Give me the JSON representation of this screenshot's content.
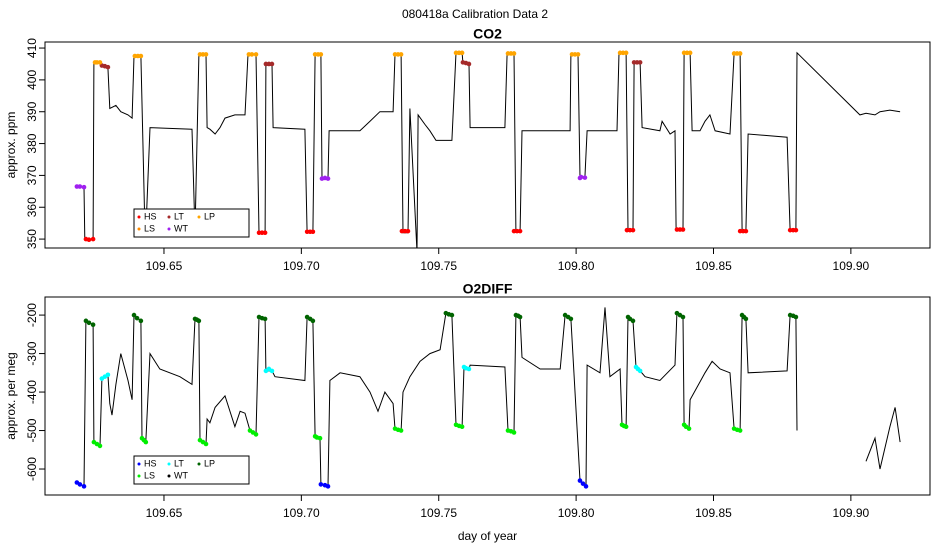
{
  "title": "080418a   Calibration Data 2",
  "chart_data": [
    {
      "type": "line",
      "title": "CO2",
      "y_label": "approx. ppm",
      "xlim": [
        109.6067,
        109.9288
      ],
      "xticks": [
        109.65,
        {
          "value": 109.7,
          "label": "109.70"
        },
        109.75,
        {
          "value": 109.8,
          "label": "109.80"
        },
        109.85,
        {
          "value": 109.9,
          "label": "109.90"
        }
      ],
      "ylim": [
        347.2,
        411.9
      ],
      "yticks": [
        350,
        360,
        370,
        380,
        390,
        400,
        410
      ],
      "legend": "bottomleft",
      "line": {
        "color": "#000000",
        "x": [
          109.6183,
          109.6209,
          109.6212,
          109.6242,
          109.6245,
          109.6267,
          109.6271,
          109.6296,
          109.6303,
          109.6325,
          109.6343,
          109.6369,
          109.6384,
          109.6391,
          109.6416,
          109.6431,
          109.6434,
          109.6449,
          109.6602,
          109.6613,
          109.6627,
          109.6653,
          109.6657,
          109.6667,
          109.6686,
          109.6704,
          109.6722,
          109.6758,
          109.6795,
          109.6806,
          109.6835,
          109.6846,
          109.6868,
          109.6871,
          109.6893,
          109.6897,
          109.7013,
          109.7021,
          109.7042,
          109.705,
          109.7071,
          109.7075,
          109.7097,
          109.7101,
          109.7213,
          109.725,
          109.7286,
          109.7334,
          109.7341,
          109.7363,
          109.737,
          109.7388,
          109.7395,
          109.7421,
          109.7425,
          109.745,
          109.7468,
          109.749,
          109.7548,
          109.7563,
          109.7585,
          109.7588,
          109.761,
          109.7614,
          109.7741,
          109.7749,
          109.7774,
          109.7781,
          109.7796,
          109.7803,
          109.7978,
          109.7981,
          109.8007,
          109.8014,
          109.8032,
          109.804,
          109.8149,
          109.8156,
          109.8182,
          109.8189,
          109.8207,
          109.8211,
          109.8233,
          109.824,
          109.8305,
          109.8313,
          109.8342,
          109.836,
          109.8364,
          109.8389,
          109.8393,
          109.8415,
          109.8422,
          109.8451,
          109.8469,
          109.8487,
          109.8506,
          109.856,
          109.8575,
          109.8597,
          109.8604,
          109.8618,
          109.8626,
          109.8768,
          109.8779,
          109.88,
          109.8804,
          109.9033,
          109.9055,
          109.9088,
          109.9106,
          109.9142,
          109.9179
        ],
        "values": [
          366.5,
          366.3,
          350,
          350,
          405.5,
          405.5,
          404.5,
          404,
          391,
          392,
          390,
          389,
          388,
          407.5,
          407.5,
          352,
          352,
          385,
          384.5,
          352,
          408,
          408,
          385,
          384.5,
          383,
          385,
          388,
          389,
          389,
          408,
          408,
          352,
          352,
          405,
          405,
          385,
          384.5,
          352,
          352,
          408,
          408,
          369,
          369,
          384,
          384,
          387,
          390,
          390,
          408,
          408,
          352,
          352,
          391,
          346,
          389,
          386,
          384,
          381,
          381,
          408.5,
          408.5,
          405.5,
          405,
          385,
          385,
          408.3,
          408.3,
          352.5,
          352.5,
          384,
          384,
          408,
          408,
          369.3,
          369.3,
          384,
          384,
          408.5,
          408.5,
          352.8,
          352.8,
          405.5,
          405.5,
          385,
          384,
          387,
          383,
          384,
          353,
          353,
          408.5,
          408.5,
          384,
          384,
          387,
          389,
          384,
          383,
          408.3,
          408.3,
          352.5,
          352.5,
          383,
          382,
          352.8,
          352.8,
          408.5,
          389,
          389.5,
          389,
          390,
          390.5,
          390
        ]
      },
      "series": [
        {
          "name": "HS",
          "color": "#ff0000",
          "x": [
            109.6216,
            109.6227,
            109.6242,
            109.6846,
            109.6857,
            109.6868,
            109.7021,
            109.7032,
            109.7042,
            109.7366,
            109.7377,
            109.7388,
            109.7774,
            109.7785,
            109.7796,
            109.8185,
            109.8196,
            109.8207,
            109.8367,
            109.8378,
            109.8389,
            109.8597,
            109.8608,
            109.8618,
            109.8779,
            109.879,
            109.88
          ],
          "values": [
            350,
            349.8,
            350,
            352,
            352,
            352,
            352.3,
            352.3,
            352.3,
            352.5,
            352.5,
            352.5,
            352.5,
            352.5,
            352.5,
            352.8,
            352.8,
            352.8,
            353,
            353,
            353,
            352.5,
            352.5,
            352.5,
            352.8,
            352.8,
            352.8
          ]
        },
        {
          "name": "LS",
          "color": "#ff8c00",
          "x": [],
          "values": []
        },
        {
          "name": "LT",
          "color": "#a52a2a",
          "x": [
            109.6274,
            109.6285,
            109.6296,
            109.6871,
            109.6882,
            109.6893,
            109.7588,
            109.7599,
            109.761,
            109.8211,
            109.8222,
            109.8233
          ],
          "values": [
            404.5,
            404.3,
            404,
            405,
            405,
            405,
            405.5,
            405.3,
            405,
            405.5,
            405.5,
            405.5
          ]
        },
        {
          "name": "WT",
          "color": "#a020f0",
          "x": [
            109.6183,
            109.6194,
            109.6209,
            109.7075,
            109.7086,
            109.7097,
            109.8014,
            109.8018,
            109.8032
          ],
          "values": [
            366.5,
            366.5,
            366.3,
            369,
            369.2,
            369,
            369.2,
            369.5,
            369.3
          ]
        },
        {
          "name": "LP",
          "color": "#ffa500",
          "x": [
            109.6249,
            109.6256,
            109.6267,
            109.6394,
            109.6405,
            109.6416,
            109.6631,
            109.6642,
            109.6653,
            109.6809,
            109.682,
            109.6835,
            109.705,
            109.7061,
            109.7071,
            109.7341,
            109.7352,
            109.7363,
            109.7563,
            109.7574,
            109.7585,
            109.7752,
            109.7763,
            109.7774,
            109.7985,
            109.7996,
            109.8007,
            109.816,
            109.8171,
            109.8182,
            109.8393,
            109.8404,
            109.8415,
            109.8575,
            109.8586,
            109.8597
          ],
          "values": [
            405.5,
            405.5,
            405.5,
            407.5,
            407.5,
            407.5,
            408,
            408,
            408,
            408,
            408,
            408,
            408,
            408,
            408,
            408,
            408,
            408,
            408.5,
            408.5,
            408.5,
            408.3,
            408.3,
            408.3,
            408,
            408,
            408,
            408.5,
            408.5,
            408.5,
            408.5,
            408.5,
            408.5,
            408.3,
            408.3,
            408.3
          ]
        }
      ]
    },
    {
      "type": "line",
      "title": "O2DIFF",
      "y_label": "approx. per meg",
      "x_label": "day of year",
      "xlim": [
        109.6067,
        109.9288
      ],
      "xticks": [
        109.65,
        {
          "value": 109.7,
          "label": "109.70"
        },
        109.75,
        {
          "value": 109.8,
          "label": "109.80"
        },
        109.85,
        {
          "value": 109.9,
          "label": "109.90"
        }
      ],
      "ylim": [
        -667.5,
        -153
      ],
      "yticks": [
        -600,
        -500,
        -400,
        -300,
        -200
      ],
      "legend": "bottomleft",
      "line": {
        "color": "#000000",
        "x": [
          109.6183,
          109.6209,
          109.6216,
          109.6242,
          109.6245,
          109.6267,
          109.6274,
          109.6296,
          109.6303,
          109.6311,
          109.6325,
          109.6343,
          109.6369,
          109.6384,
          109.6391,
          109.6416,
          109.642,
          109.6434,
          109.6449,
          109.6485,
          109.6558,
          109.6602,
          109.6613,
          109.6627,
          109.6631,
          109.6653,
          109.6657,
          109.6667,
          109.6686,
          109.6722,
          109.6758,
          109.6777,
          109.6795,
          109.6813,
          109.6835,
          109.6846,
          109.6868,
          109.6871,
          109.6893,
          109.6904,
          109.7013,
          109.7021,
          109.7042,
          109.705,
          109.7068,
          109.7071,
          109.7097,
          109.7104,
          109.7141,
          109.7213,
          109.725,
          109.7279,
          109.7304,
          109.7334,
          109.7341,
          109.7363,
          109.737,
          109.7395,
          109.7432,
          109.7468,
          109.7505,
          109.7526,
          109.7548,
          109.7563,
          109.7585,
          109.7592,
          109.761,
          109.7614,
          109.7741,
          109.7752,
          109.7774,
          109.7781,
          109.7796,
          109.7803,
          109.7869,
          109.7942,
          109.796,
          109.7981,
          109.8014,
          109.8036,
          109.804,
          109.8087,
          109.8105,
          109.8123,
          109.816,
          109.8167,
          109.8182,
          109.8189,
          109.8207,
          109.8218,
          109.8233,
          109.8251,
          109.8305,
          109.836,
          109.8367,
          109.8389,
          109.8393,
          109.8411,
          109.8415,
          109.8469,
          109.8495,
          109.8524,
          109.856,
          109.8575,
          109.8597,
          109.8604,
          109.8618,
          109.8626,
          109.8768,
          109.8779,
          109.88,
          109.8804,
          null,
          109.9055,
          109.9088,
          109.9106,
          109.9142,
          109.9161,
          109.9179
        ],
        "values": [
          -635,
          -645,
          -215,
          -225,
          -530,
          -540,
          -365,
          -355,
          -430,
          -460,
          -380,
          -300,
          -370,
          -420,
          -200,
          -215,
          -520,
          -530,
          -300,
          -340,
          -360,
          -380,
          -210,
          -215,
          -525,
          -535,
          -470,
          -480,
          -440,
          -410,
          -490,
          -450,
          -455,
          -500,
          -510,
          -205,
          -210,
          -345,
          -345,
          -360,
          -370,
          -205,
          -215,
          -515,
          -520,
          -640,
          -645,
          -370,
          -350,
          -360,
          -400,
          -450,
          -400,
          -430,
          -495,
          -500,
          -400,
          -360,
          -320,
          -300,
          -290,
          -195,
          -200,
          -485,
          -490,
          -335,
          -340,
          -330,
          -335,
          -500,
          -505,
          -200,
          -205,
          -310,
          -340,
          -340,
          -200,
          -210,
          -630,
          -645,
          -330,
          -350,
          -180,
          -360,
          -340,
          -485,
          -490,
          -205,
          -215,
          -335,
          -345,
          -360,
          -370,
          -330,
          -195,
          -205,
          -485,
          -495,
          -420,
          -350,
          -320,
          -340,
          -350,
          -495,
          -500,
          -200,
          -210,
          -350,
          -345,
          -200,
          -205,
          -500,
          null,
          -580,
          -520,
          -600,
          -490,
          -440,
          -530
        ]
      },
      "series": [
        {
          "name": "HS",
          "color": "#0000ff",
          "x": [
            109.6183,
            109.6194,
            109.6209,
            109.7071,
            109.7086,
            109.7097,
            109.8014,
            109.8025,
            109.8036
          ],
          "values": [
            -635,
            -640,
            -645,
            -640,
            -642,
            -645,
            -630,
            -638,
            -645
          ]
        },
        {
          "name": "LS",
          "color": "#00ee00",
          "x": [
            109.6245,
            109.6256,
            109.6267,
            109.642,
            109.6427,
            109.6434,
            109.6631,
            109.6642,
            109.6653,
            109.6813,
            109.6824,
            109.6835,
            109.705,
            109.7057,
            109.7068,
            109.7341,
            109.7352,
            109.7363,
            109.7563,
            109.7574,
            109.7585,
            109.7752,
            109.7763,
            109.7774,
            109.8167,
            109.8174,
            109.8182,
            109.8393,
            109.84,
            109.8411,
            109.8575,
            109.8586,
            109.8597
          ],
          "values": [
            -530,
            -535,
            -540,
            -520,
            -525,
            -530,
            -525,
            -530,
            -535,
            -500,
            -505,
            -510,
            -515,
            -518,
            -520,
            -495,
            -498,
            -500,
            -485,
            -488,
            -490,
            -500,
            -502,
            -505,
            -485,
            -488,
            -490,
            -485,
            -490,
            -495,
            -495,
            -498,
            -500
          ]
        },
        {
          "name": "LT",
          "color": "#00ffff",
          "x": [
            109.6274,
            109.6285,
            109.6296,
            109.6871,
            109.6882,
            109.6893,
            109.7592,
            109.7599,
            109.761,
            109.8218,
            109.8225,
            109.8233
          ],
          "values": [
            -365,
            -360,
            -355,
            -345,
            -340,
            -345,
            -335,
            -338,
            -340,
            -335,
            -340,
            -345
          ]
        },
        {
          "name": "WT",
          "color": "#000000",
          "x": [],
          "values": []
        },
        {
          "name": "LP",
          "color": "#006400",
          "x": [
            109.6216,
            109.6227,
            109.6242,
            109.6391,
            109.6402,
            109.6416,
            109.6613,
            109.662,
            109.6627,
            109.6846,
            109.6857,
            109.6868,
            109.7021,
            109.7032,
            109.7042,
            109.7526,
            109.7537,
            109.7548,
            109.7781,
            109.7789,
            109.7796,
            109.796,
            109.7971,
            109.7981,
            109.8189,
            109.8196,
            109.8207,
            109.8367,
            109.8378,
            109.8389,
            109.8604,
            109.8611,
            109.8618,
            109.8779,
            109.879,
            109.88
          ],
          "values": [
            -215,
            -220,
            -225,
            -200,
            -208,
            -215,
            -210,
            -212,
            -215,
            -205,
            -208,
            -210,
            -205,
            -210,
            -215,
            -195,
            -198,
            -200,
            -200,
            -202,
            -205,
            -200,
            -205,
            -210,
            -205,
            -210,
            -215,
            -195,
            -200,
            -205,
            -200,
            -205,
            -210,
            -200,
            -202,
            -205
          ]
        }
      ]
    }
  ]
}
